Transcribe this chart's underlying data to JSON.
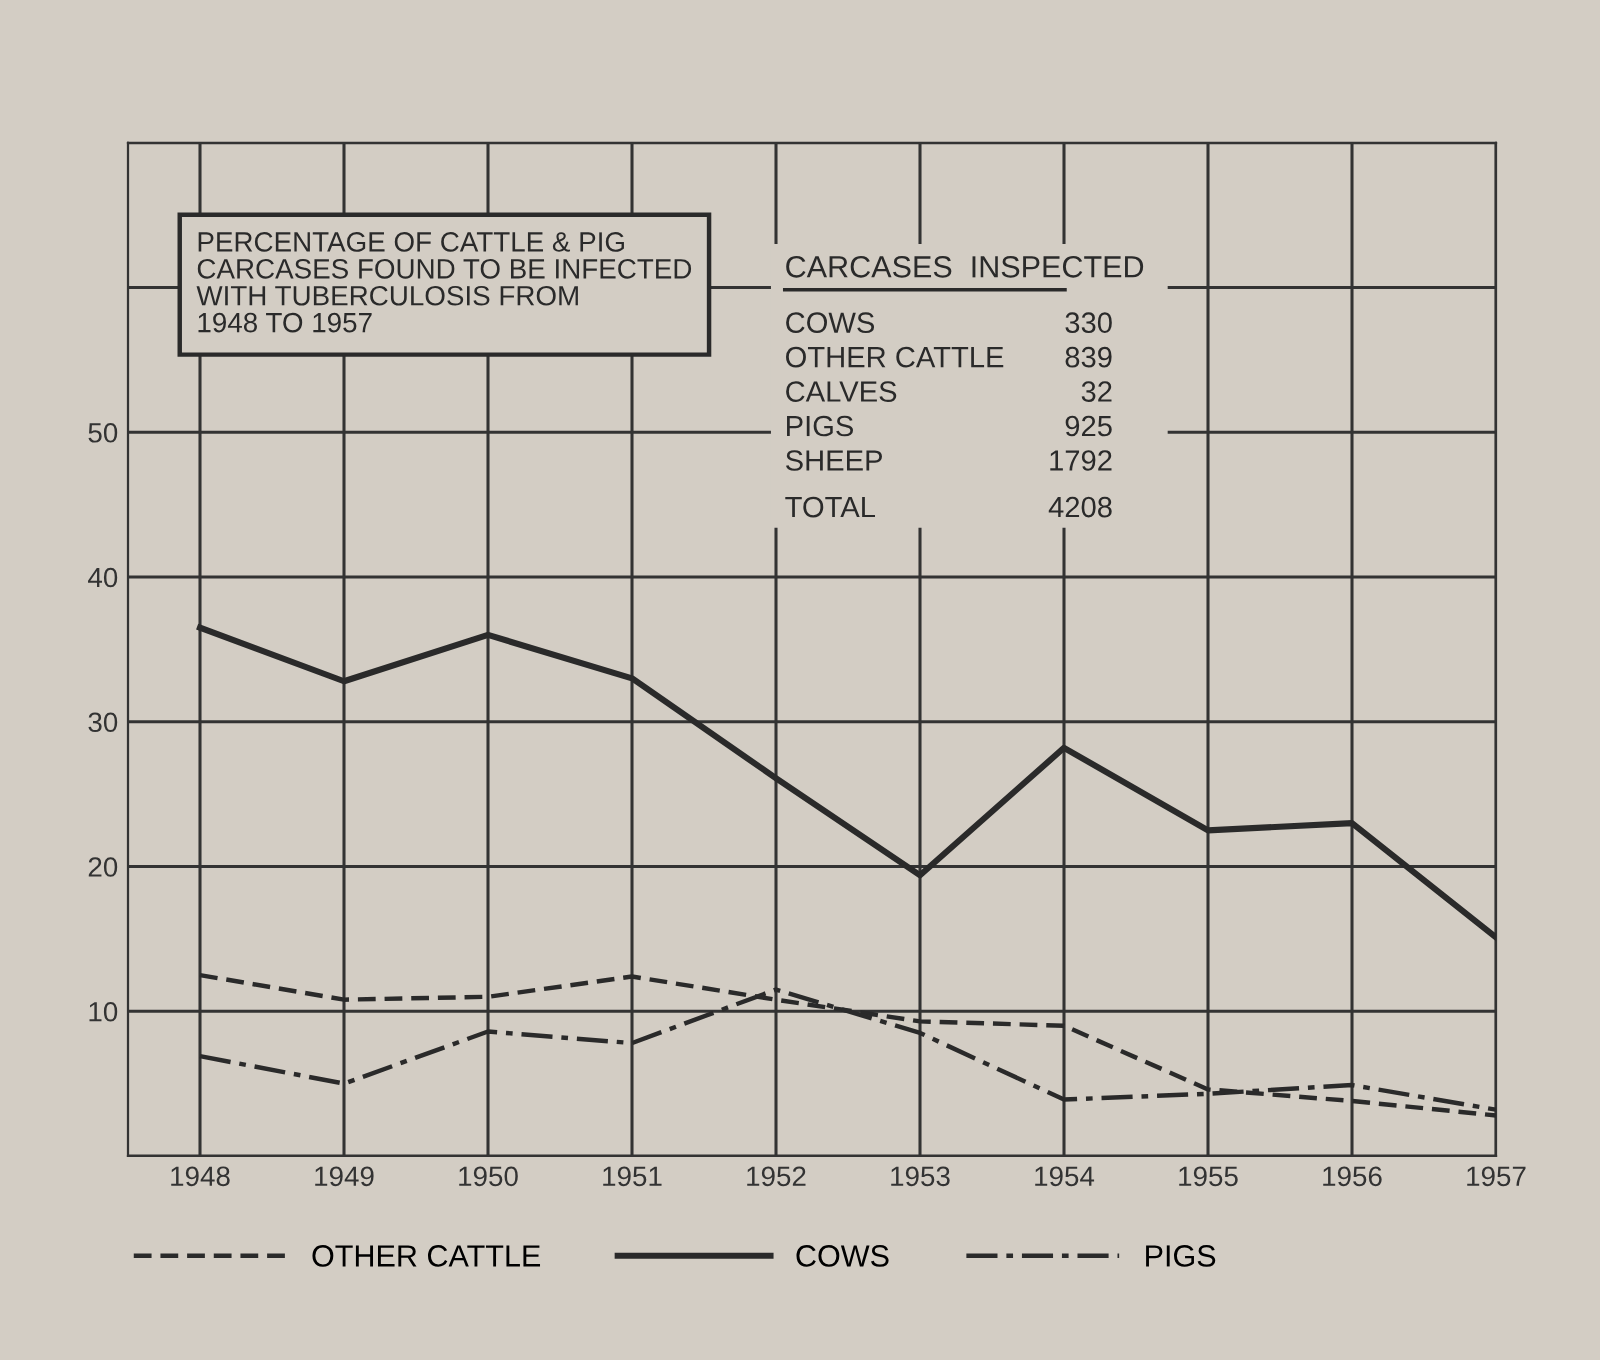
{
  "chart_data": {
    "type": "line",
    "title": "PERCENTAGE OF CATTLE & PIG\nCARCASES FOUND TO BE INFECTED\nWITH TUBERCULOSIS FROM\n1948 TO 1957",
    "x": [
      1948,
      1949,
      1950,
      1951,
      1952,
      1953,
      1954,
      1955,
      1956,
      1957
    ],
    "series": [
      {
        "name": "OTHER CATTLE",
        "color": "#2a2a2a",
        "line_style": "dashed",
        "values": [
          12.5,
          10.8,
          11,
          12.4,
          10.8,
          9.3,
          9.0,
          4.6,
          3.8,
          2.8
        ]
      },
      {
        "name": "COWS",
        "color": "#2a2a2a",
        "line_style": "solid",
        "values": [
          36.5,
          32.8,
          36,
          33,
          26.1,
          19.4,
          28.2,
          22.5,
          23,
          15.1
        ]
      },
      {
        "name": "PIGS",
        "color": "#2a2a2a",
        "line_style": "dashdot",
        "values": [
          6.9,
          5,
          8.6,
          7.8,
          11.5,
          8.5,
          3.9,
          4.3,
          4.9,
          3.2
        ]
      }
    ],
    "xlim": [
      1947.5,
      1957
    ],
    "xticks": [
      1948,
      1949,
      1950,
      1951,
      1952,
      1953,
      1954,
      1955,
      1956,
      1957
    ],
    "ylim": [
      0,
      70
    ],
    "yticks": [
      {
        "value": 0,
        "label": null
      },
      10,
      20,
      30,
      40,
      50,
      {
        "value": 60,
        "label": null
      },
      {
        "value": 70,
        "label": null
      }
    ],
    "grid": true,
    "legend": "bottom",
    "marker": "none",
    "annotations": [
      "CARCASES  INSPECTED",
      "COWS",
      "330",
      "OTHER CATTLE",
      "839",
      "CALVES",
      "32",
      "PIGS",
      "925",
      "SHEEP",
      "1792",
      "TOTAL",
      "4208"
    ]
  }
}
